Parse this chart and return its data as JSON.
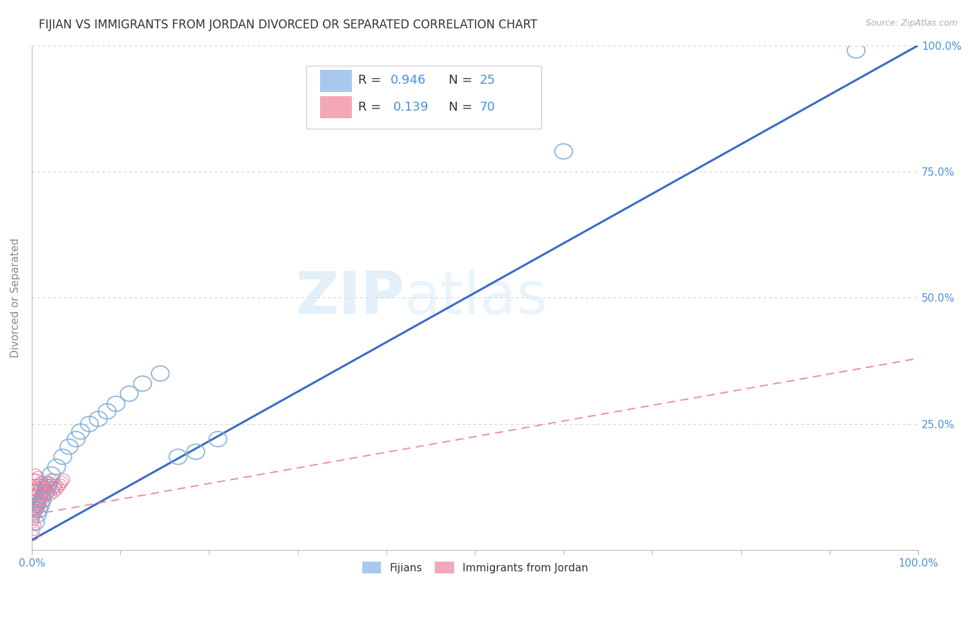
{
  "title": "FIJIAN VS IMMIGRANTS FROM JORDAN DIVORCED OR SEPARATED CORRELATION CHART",
  "source_text": "Source: ZipAtlas.com",
  "ylabel": "Divorced or Separated",
  "xlim": [
    0,
    1.0
  ],
  "ylim": [
    0,
    1.0
  ],
  "x_tick_labels": [
    "0.0%",
    "100.0%"
  ],
  "x_ticks": [
    0.0,
    1.0
  ],
  "y_tick_labels": [
    "25.0%",
    "50.0%",
    "75.0%",
    "100.0%"
  ],
  "y_ticks": [
    0.25,
    0.5,
    0.75,
    1.0
  ],
  "legend_labels": [
    "Fijians",
    "Immigrants from Jordan"
  ],
  "fijian_color": "#a8c8f0",
  "jordan_color": "#f4a7b9",
  "fijian_edge_color": "#7aaad8",
  "jordan_edge_color": "#e87a9a",
  "fijian_trend_color": "#3a6cc8",
  "jordan_trend_color": "#e87a9a",
  "legend_r_fijian": "R = 0.946",
  "legend_n_fijian": "N = 25",
  "legend_r_jordan": "R =  0.139",
  "legend_n_jordan": "N = 70",
  "background_color": "#ffffff",
  "grid_color": "#d0d0d0",
  "title_color": "#333333",
  "axis_label_color": "#888888",
  "tick_label_color": "#4a90d9",
  "r_label_color": "#333333",
  "watermark_zip": "#c8e0f4",
  "watermark_atlas": "#c8e0f4",
  "fijian_x": [
    0.004,
    0.006,
    0.008,
    0.01,
    0.012,
    0.015,
    0.018,
    0.022,
    0.028,
    0.035,
    0.042,
    0.05,
    0.055,
    0.065,
    0.075,
    0.085,
    0.095,
    0.11,
    0.125,
    0.145,
    0.165,
    0.185,
    0.21,
    0.6,
    0.93
  ],
  "fijian_y": [
    0.055,
    0.07,
    0.08,
    0.09,
    0.1,
    0.115,
    0.13,
    0.15,
    0.165,
    0.185,
    0.205,
    0.22,
    0.235,
    0.25,
    0.26,
    0.275,
    0.29,
    0.31,
    0.33,
    0.35,
    0.185,
    0.195,
    0.22,
    0.79,
    0.99
  ],
  "jordan_x": [
    0.001,
    0.001,
    0.001,
    0.002,
    0.002,
    0.002,
    0.003,
    0.003,
    0.003,
    0.004,
    0.004,
    0.004,
    0.005,
    0.005,
    0.005,
    0.006,
    0.006,
    0.007,
    0.007,
    0.007,
    0.008,
    0.008,
    0.009,
    0.009,
    0.01,
    0.01,
    0.011,
    0.011,
    0.012,
    0.013,
    0.013,
    0.014,
    0.015,
    0.016,
    0.017,
    0.018,
    0.019,
    0.02,
    0.021,
    0.022,
    0.023,
    0.024,
    0.025,
    0.026,
    0.027,
    0.028,
    0.03,
    0.032,
    0.034,
    0.036,
    0.001,
    0.002,
    0.003,
    0.004,
    0.005,
    0.006,
    0.007,
    0.008,
    0.009,
    0.01,
    0.011,
    0.012,
    0.013,
    0.015,
    0.017,
    0.019,
    0.021,
    0.001,
    0.002,
    0.003
  ],
  "jordan_y": [
    0.06,
    0.09,
    0.12,
    0.08,
    0.11,
    0.14,
    0.07,
    0.1,
    0.13,
    0.09,
    0.12,
    0.15,
    0.08,
    0.11,
    0.14,
    0.095,
    0.125,
    0.085,
    0.115,
    0.145,
    0.1,
    0.13,
    0.09,
    0.12,
    0.095,
    0.125,
    0.105,
    0.135,
    0.11,
    0.095,
    0.125,
    0.105,
    0.115,
    0.12,
    0.11,
    0.13,
    0.115,
    0.125,
    0.11,
    0.13,
    0.12,
    0.14,
    0.115,
    0.125,
    0.13,
    0.12,
    0.125,
    0.13,
    0.135,
    0.14,
    0.055,
    0.065,
    0.075,
    0.085,
    0.075,
    0.085,
    0.09,
    0.095,
    0.1,
    0.105,
    0.11,
    0.115,
    0.12,
    0.125,
    0.13,
    0.135,
    0.14,
    0.03,
    0.04,
    0.05
  ],
  "fijian_trend_x": [
    0.0,
    1.0
  ],
  "fijian_trend_y": [
    0.02,
    1.0
  ],
  "jordan_trend_x": [
    0.0,
    1.0
  ],
  "jordan_trend_y": [
    0.07,
    0.38
  ]
}
